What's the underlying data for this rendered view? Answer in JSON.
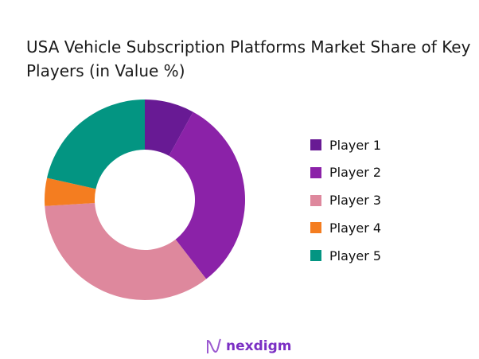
{
  "chart_data": {
    "type": "pie",
    "title": "USA Vehicle Subscription Platforms Market Share of Key Players (in Value %)",
    "donut": true,
    "legend_position": "right",
    "categories": [
      "Player 1",
      "Player 2",
      "Player 3",
      "Player 4",
      "Player 5"
    ],
    "values": [
      8,
      31.5,
      34.5,
      4.5,
      21.5
    ],
    "colors": [
      "#681a94",
      "#8b22a8",
      "#de889d",
      "#f47d20",
      "#039582"
    ]
  },
  "logo": {
    "text": "nexdigm",
    "color": "#7b2fc4"
  }
}
